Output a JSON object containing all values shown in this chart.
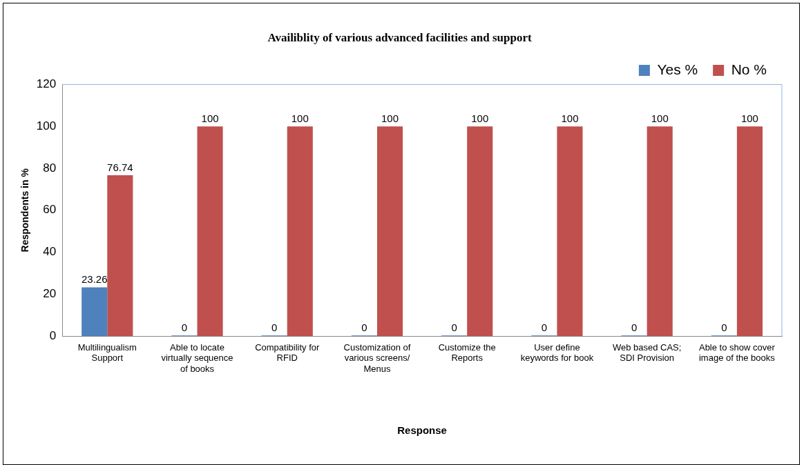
{
  "chart_data": {
    "type": "bar",
    "title": "Availiblity of various advanced facilities and support",
    "xlabel": "Response",
    "ylabel": "Respondents in %",
    "categories": [
      "Multilingualism Support",
      "Able to locate virtually sequence of books",
      "Compatibility for RFID",
      "Customization of various screens/ Menus",
      "Customize the Reports",
      "User define keywords for book",
      "Web based CAS; SDI Provision",
      "Able to show cover image of the books"
    ],
    "series": [
      {
        "name": "Yes %",
        "color": "#4f81bd",
        "values": [
          23.26,
          0,
          0,
          0,
          0,
          0,
          0,
          0
        ]
      },
      {
        "name": "No %",
        "color": "#c0504d",
        "values": [
          76.74,
          100,
          100,
          100,
          100,
          100,
          100,
          100
        ]
      }
    ],
    "ylim": [
      0,
      120
    ],
    "yticks": [
      0,
      20,
      40,
      60,
      80,
      100,
      120
    ],
    "grid": false,
    "legend": "top right",
    "data_labels": true
  }
}
